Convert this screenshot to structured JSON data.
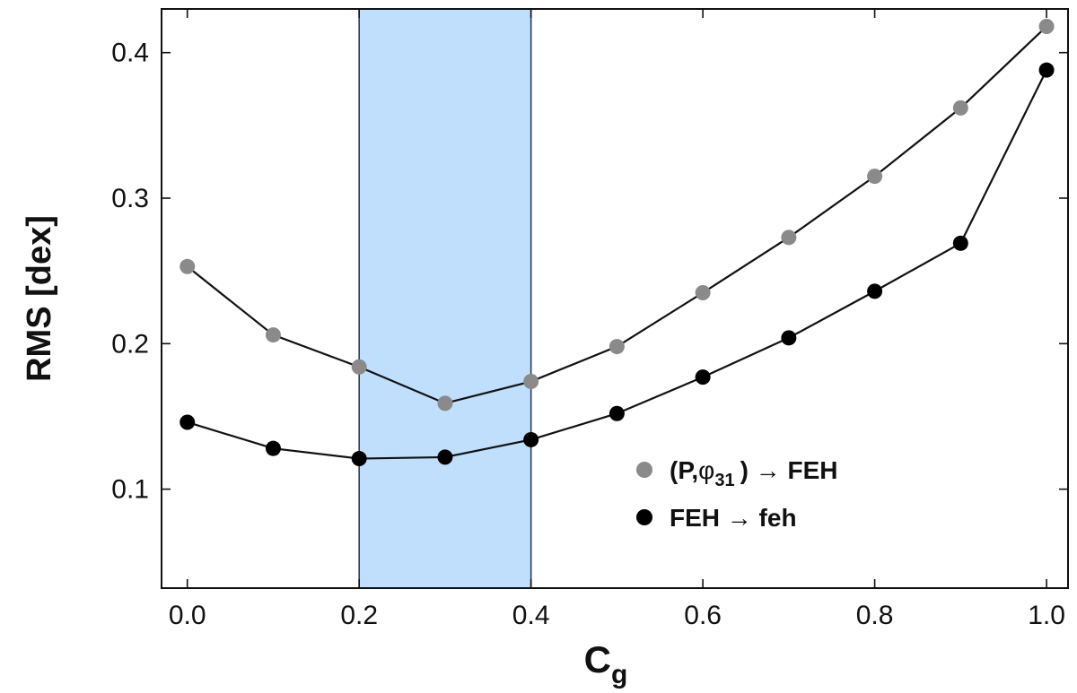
{
  "chart_data": {
    "type": "line",
    "xlabel_main": "C",
    "xlabel_sub": "g",
    "ylabel": "RMS [dex]",
    "xlim": [
      -0.03,
      1.025
    ],
    "ylim": [
      0.032,
      0.43
    ],
    "x_ticks": [
      "0.0",
      "0.2",
      "0.4",
      "0.6",
      "0.8",
      "1.0"
    ],
    "x_tick_values": [
      0.0,
      0.2,
      0.4,
      0.6,
      0.8,
      1.0
    ],
    "y_ticks": [
      "0.1",
      "0.2",
      "0.3",
      "0.4"
    ],
    "y_tick_values": [
      0.1,
      0.2,
      0.3,
      0.4
    ],
    "highlight_band": {
      "x_from": 0.2,
      "x_to": 0.4,
      "color": "#bfdffd"
    },
    "x": [
      0.0,
      0.1,
      0.2,
      0.3,
      0.4,
      0.5,
      0.6,
      0.7,
      0.8,
      0.9,
      1.0
    ],
    "series": [
      {
        "color": "#8a8a8a",
        "values": [
          0.253,
          0.206,
          0.184,
          0.159,
          0.174,
          0.198,
          0.235,
          0.273,
          0.315,
          0.362,
          0.418
        ]
      },
      {
        "color": "#000000",
        "values": [
          0.146,
          0.128,
          0.121,
          0.122,
          0.134,
          0.152,
          0.177,
          0.204,
          0.236,
          0.269,
          0.388
        ]
      }
    ],
    "legend": {
      "placement": "bottom-right",
      "entries": [
        {
          "prefix": "(P,",
          "phi": "φ",
          "sub": "31",
          "suffix": ") → FEH",
          "color": "#8a8a8a"
        },
        {
          "text": "FEH → feh",
          "color": "#000000"
        }
      ]
    }
  }
}
